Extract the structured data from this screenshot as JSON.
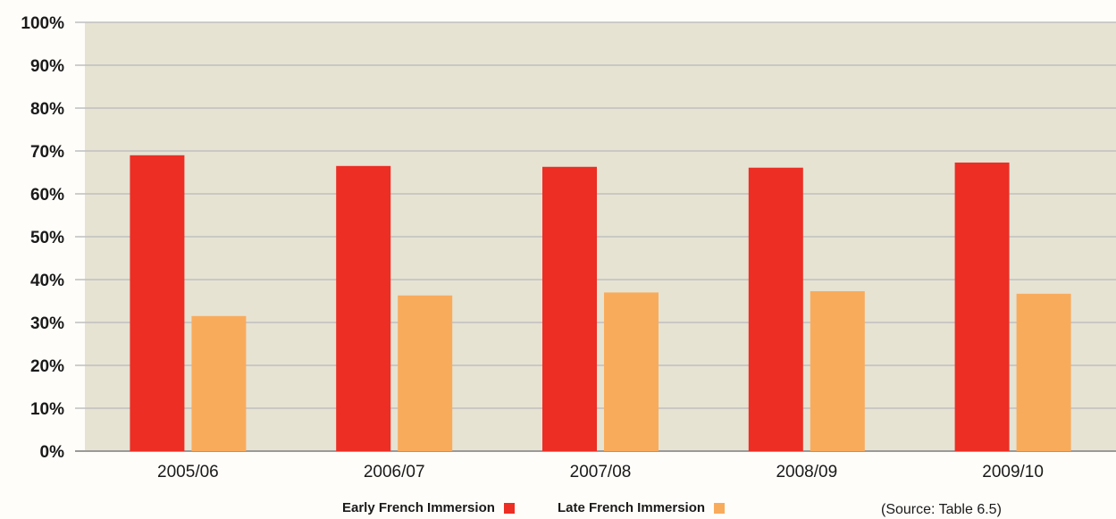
{
  "chart_data": {
    "type": "bar",
    "title": "",
    "xlabel": "",
    "ylabel": "",
    "categories": [
      "2005/06",
      "2006/07",
      "2007/08",
      "2008/09",
      "2009/10"
    ],
    "series": [
      {
        "name": "Early French Immersion",
        "color": "#ec2e24",
        "values": [
          69,
          66.5,
          66.3,
          66.1,
          67.3
        ]
      },
      {
        "name": "Late French Immersion",
        "color": "#f9ab5c",
        "values": [
          31.5,
          36.3,
          37,
          37.3,
          36.7
        ]
      }
    ],
    "ylim": [
      0,
      100
    ],
    "yticks": [
      "0%",
      "10%",
      "20%",
      "30%",
      "40%",
      "50%",
      "60%",
      "70%",
      "80%",
      "90%",
      "100%"
    ],
    "grid": true,
    "legend_position": "bottom",
    "plot_background": "#e6e3d3",
    "gridline_color": "#bfbfbf"
  },
  "source_note": "(Source: Table 6.5)"
}
